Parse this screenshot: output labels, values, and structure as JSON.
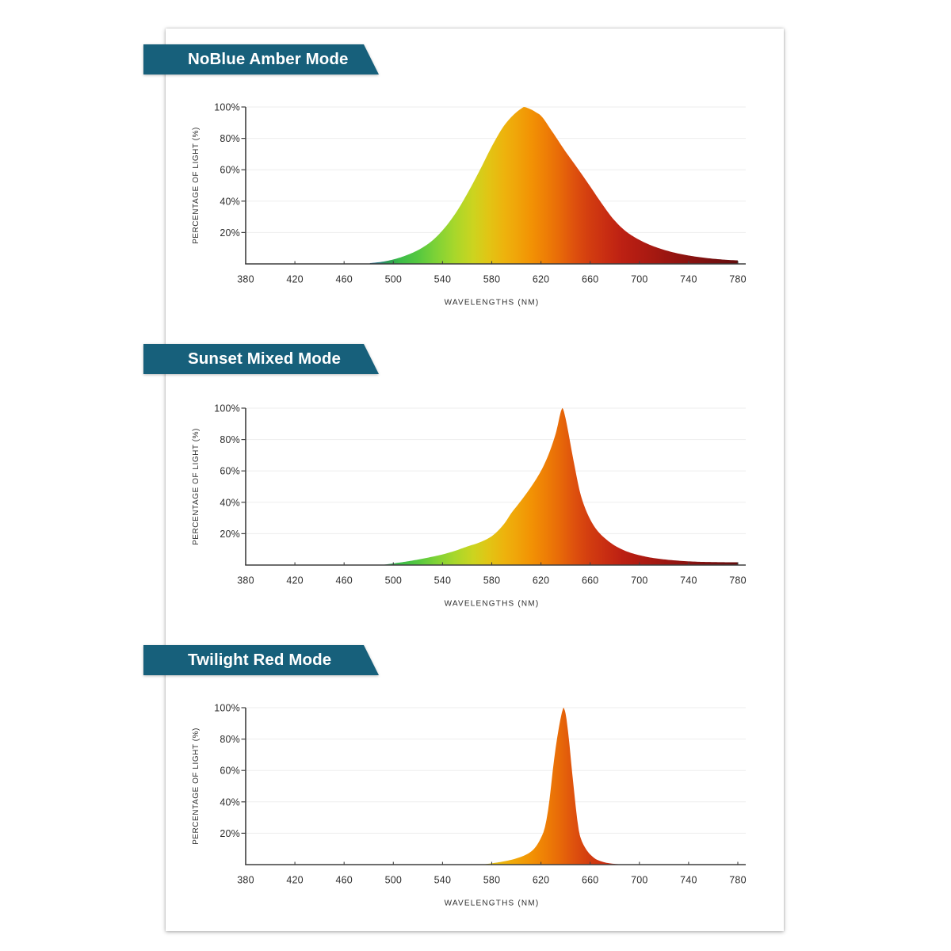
{
  "page": {
    "background": "#ffffff",
    "card_background": "#ffffff"
  },
  "banner_color": "#17607b",
  "spectrum_gradient": [
    [
      480,
      "#2e6ba4"
    ],
    [
      488,
      "#2c7d85"
    ],
    [
      495,
      "#2b9a55"
    ],
    [
      505,
      "#3cbc49"
    ],
    [
      520,
      "#55c840"
    ],
    [
      535,
      "#7fd236"
    ],
    [
      550,
      "#a8d72b"
    ],
    [
      565,
      "#ccd41f"
    ],
    [
      578,
      "#e2c414"
    ],
    [
      590,
      "#edb30d"
    ],
    [
      600,
      "#f0a509"
    ],
    [
      612,
      "#f29204"
    ],
    [
      622,
      "#ef8205"
    ],
    [
      635,
      "#e86a08"
    ],
    [
      648,
      "#dd4f0e"
    ],
    [
      660,
      "#d23c10"
    ],
    [
      672,
      "#c92e12"
    ],
    [
      685,
      "#bd2113"
    ],
    [
      698,
      "#b21c12"
    ],
    [
      712,
      "#a51911"
    ],
    [
      726,
      "#971511"
    ],
    [
      740,
      "#8a1310"
    ],
    [
      755,
      "#7c1110"
    ],
    [
      768,
      "#6f0f0f"
    ],
    [
      780,
      "#640d0d"
    ]
  ],
  "axes_style": {
    "axis_color": "#3f3f3f",
    "grid_color": "#ededed",
    "label_color": "#2d2d2d"
  },
  "chart_data": [
    {
      "type": "area",
      "title": "NoBlue Amber Mode",
      "xlabel": "WAVELENGTHS (NM)",
      "ylabel": "PERCENTAGE OF LIGHT (%)",
      "x_ticks": [
        "380",
        "420",
        "460",
        "500",
        "540",
        "580",
        "620",
        "660",
        "700",
        "740",
        "780"
      ],
      "y_ticks": [
        "20%",
        "40%",
        "60%",
        "80%",
        "100%"
      ],
      "xlim": [
        380,
        780
      ],
      "ylim": [
        0,
        100
      ],
      "peak_nm": 606.5,
      "points": [
        [
          481.0,
          0.48
        ],
        [
          491.0,
          1.36
        ],
        [
          501.0,
          3.04
        ],
        [
          511.0,
          5.59
        ],
        [
          521.0,
          9.18
        ],
        [
          531.0,
          14.41
        ],
        [
          541.0,
          22.27
        ],
        [
          551.0,
          32.78
        ],
        [
          561.0,
          46.02
        ],
        [
          571.0,
          60.8
        ],
        [
          581.0,
          76.25
        ],
        [
          591.0,
          89.15
        ],
        [
          601,
          97.3
        ],
        [
          604,
          99.0
        ],
        [
          606.3,
          100.0
        ],
        [
          609,
          99.4
        ],
        [
          612.5,
          98.2
        ],
        [
          616,
          96.6
        ],
        [
          619.0,
          95.13
        ],
        [
          629.0,
          84.47
        ],
        [
          639.0,
          72.71
        ],
        [
          649.0,
          61.77
        ],
        [
          659.0,
          50.53
        ],
        [
          669.0,
          38.98
        ],
        [
          679.0,
          28.43
        ],
        [
          689.0,
          20.77
        ],
        [
          699.0,
          15.71
        ],
        [
          709.0,
          11.99
        ],
        [
          719.0,
          9.21
        ],
        [
          729.0,
          7.08
        ],
        [
          739.0,
          5.48
        ],
        [
          749.0,
          4.28
        ],
        [
          759.0,
          3.37
        ],
        [
          769.0,
          2.71
        ],
        [
          779.0,
          2.26
        ],
        [
          780.0,
          2.23
        ]
      ]
    },
    {
      "type": "area",
      "title": "Sunset Mixed Mode",
      "xlabel": "WAVELENGTHS (NM)",
      "ylabel": "PERCENTAGE OF LIGHT (%)",
      "x_ticks": [
        "380",
        "420",
        "460",
        "500",
        "540",
        "580",
        "620",
        "660",
        "700",
        "740",
        "780"
      ],
      "y_ticks": [
        "20%",
        "40%",
        "60%",
        "80%",
        "100%"
      ],
      "xlim": [
        380,
        780
      ],
      "ylim": [
        0,
        100
      ],
      "peak_nm": 637.2,
      "points": [
        [
          490.0,
          0.04
        ],
        [
          500.0,
          1.03
        ],
        [
          510.0,
          2.16
        ],
        [
          520.0,
          3.49
        ],
        [
          530.0,
          5.03
        ],
        [
          540.0,
          6.77
        ],
        [
          550.0,
          9.03
        ],
        [
          560.0,
          11.79
        ],
        [
          570.0,
          14.37
        ],
        [
          580.0,
          18.4
        ],
        [
          590.0,
          26.2
        ],
        [
          596.0,
          33.21
        ],
        [
          602.0,
          39.19
        ],
        [
          612.0,
          49.86
        ],
        [
          622.0,
          63.02
        ],
        [
          632.0,
          83.83
        ],
        [
          633.75,
          89.47
        ],
        [
          635.75,
          96.59
        ],
        [
          637.25,
          100.0
        ],
        [
          638.0,
          99.45
        ],
        [
          638.75,
          97.63
        ],
        [
          640.5,
          91.62
        ],
        [
          646.5,
          66.42
        ],
        [
          652.5,
          44.15
        ],
        [
          658.5,
          31.49
        ],
        [
          664.5,
          23.3
        ],
        [
          670.5,
          18.09
        ],
        [
          680.5,
          12.17
        ],
        [
          690.5,
          8.45
        ],
        [
          700.5,
          6.17
        ],
        [
          710.5,
          4.6
        ],
        [
          720.5,
          3.57
        ],
        [
          730.5,
          2.86
        ],
        [
          740.5,
          2.34
        ],
        [
          750.5,
          2.04
        ],
        [
          760.5,
          1.89
        ],
        [
          770.5,
          1.79
        ],
        [
          780.0,
          1.75
        ]
      ]
    },
    {
      "type": "area",
      "title": "Twilight Red Mode",
      "xlabel": "WAVELENGTHS (NM)",
      "ylabel": "PERCENTAGE OF LIGHT (%)",
      "x_ticks": [
        "380",
        "420",
        "460",
        "500",
        "540",
        "580",
        "620",
        "660",
        "700",
        "740",
        "780"
      ],
      "y_ticks": [
        "20%",
        "40%",
        "60%",
        "80%",
        "100%"
      ],
      "xlim": [
        380,
        780
      ],
      "ylim": [
        0,
        100
      ],
      "peak_nm": 638.8,
      "points": [
        [
          572.0,
          0.03
        ],
        [
          582.0,
          1.05
        ],
        [
          592.0,
          2.39
        ],
        [
          602.0,
          4.47
        ],
        [
          612.0,
          8.34
        ],
        [
          622.0,
          20.6
        ],
        [
          624.5,
          28.64
        ],
        [
          627.0,
          41.7
        ],
        [
          629.5,
          59.37
        ],
        [
          632.0,
          74.67
        ],
        [
          635.0,
          89.25
        ],
        [
          637.0,
          96.92
        ],
        [
          638.0,
          99.56
        ],
        [
          638.5,
          100.0
        ],
        [
          640.0,
          96.27
        ],
        [
          642.0,
          84.98
        ],
        [
          643.0,
          77.82
        ],
        [
          645.5,
          57.49
        ],
        [
          651.5,
          19.07
        ],
        [
          654.0,
          13.55
        ],
        [
          660.0,
          6.5
        ],
        [
          666.0,
          2.94
        ],
        [
          676.0,
          0.8
        ],
        [
          686.0,
          0.13
        ],
        [
          690.0,
          0.01
        ]
      ]
    }
  ]
}
